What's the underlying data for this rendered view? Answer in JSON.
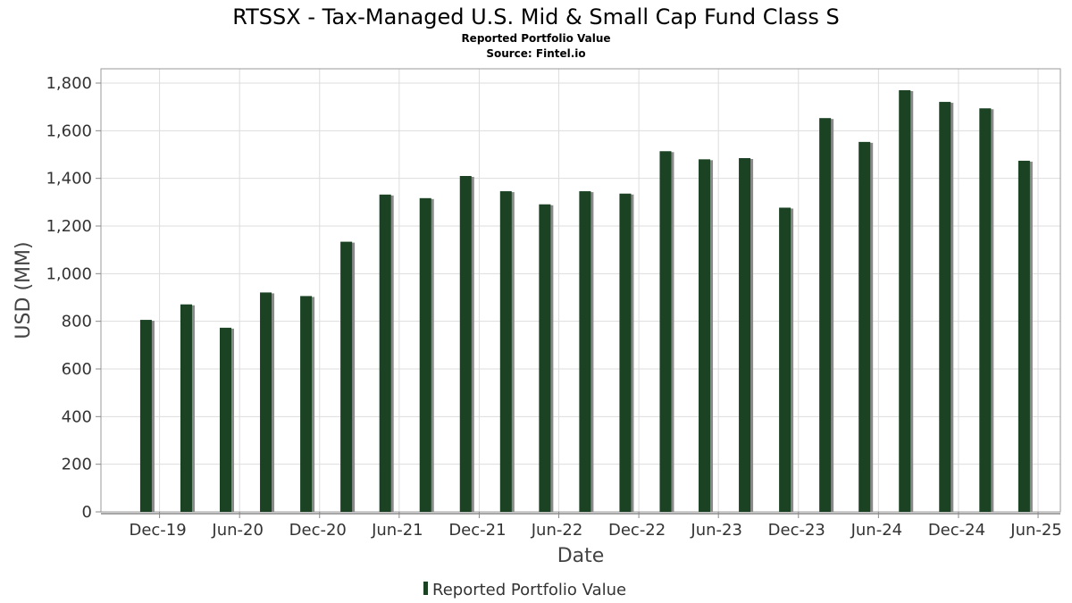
{
  "chart_data": {
    "type": "bar",
    "title": "RTSSX - Tax-Managed U.S. Mid & Small Cap Fund Class S",
    "subtitle": "Reported Portfolio Value",
    "source": "Source: Fintel.io",
    "xlabel": "Date",
    "ylabel": "USD (MM)",
    "ylim": [
      0,
      1860
    ],
    "yticks": [
      0,
      200,
      400,
      600,
      800,
      1000,
      1200,
      1400,
      1600,
      1800
    ],
    "ytick_labels": [
      "0",
      "200",
      "400",
      "600",
      "800",
      "1,000",
      "1,200",
      "1,400",
      "1,600",
      "1,800"
    ],
    "xlim": [
      "2019-07-20",
      "2025-07-22"
    ],
    "xticks": [
      "2019-12-01",
      "2020-06-01",
      "2020-12-01",
      "2021-06-01",
      "2021-12-01",
      "2022-06-01",
      "2022-12-01",
      "2023-06-01",
      "2023-12-01",
      "2024-06-01",
      "2024-12-01",
      "2025-06-01"
    ],
    "xtick_labels": [
      "Dec-19",
      "Jun-20",
      "Dec-20",
      "Jun-21",
      "Dec-21",
      "Jun-22",
      "Dec-22",
      "Jun-23",
      "Dec-23",
      "Jun-24",
      "Dec-24",
      "Jun-25"
    ],
    "grid": true,
    "legend": "bottom-center",
    "series": [
      {
        "name": "Reported Portfolio Value",
        "color": "#1a4223",
        "x": [
          "2019-10-31",
          "2020-01-31",
          "2020-04-30",
          "2020-07-31",
          "2020-10-31",
          "2021-01-31",
          "2021-04-30",
          "2021-07-31",
          "2021-10-31",
          "2022-01-31",
          "2022-04-30",
          "2022-07-31",
          "2022-10-31",
          "2023-01-31",
          "2023-04-30",
          "2023-07-31",
          "2023-10-31",
          "2024-01-31",
          "2024-04-30",
          "2024-07-31",
          "2024-10-31",
          "2025-01-31",
          "2025-04-30"
        ],
        "values": [
          806,
          871,
          773,
          921,
          906,
          1134,
          1332,
          1317,
          1410,
          1346,
          1291,
          1346,
          1336,
          1514,
          1480,
          1485,
          1277,
          1653,
          1553,
          1770,
          1721,
          1694,
          1474
        ]
      }
    ]
  }
}
